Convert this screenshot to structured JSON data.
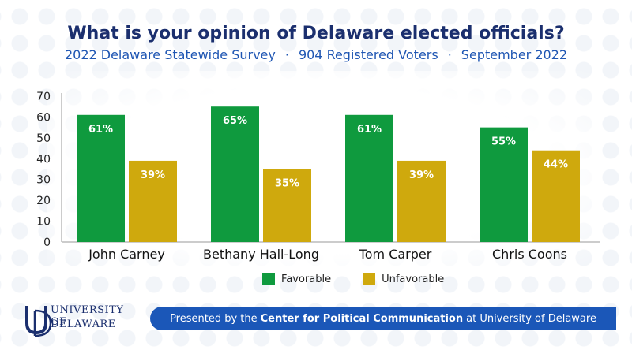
{
  "header": {
    "title": "What is your opinion of Delaware elected officials?",
    "subtitle_parts": [
      "2022 Delaware Statewide Survey",
      "904 Registered Voters",
      "September 2022"
    ],
    "subtitle_separator": "·"
  },
  "colors": {
    "favorable": "#0f9a3e",
    "unfavorable": "#cfa90d",
    "title": "#1b2f6e",
    "subtitle": "#1f56b3",
    "footer_bg": "#1b57b8"
  },
  "chart_data": {
    "type": "bar",
    "categories": [
      "John Carney",
      "Bethany Hall-Long",
      "Tom Carper",
      "Chris Coons"
    ],
    "series": [
      {
        "name": "Favorable",
        "values": [
          61,
          65,
          61,
          55
        ],
        "labels": [
          "61%",
          "65%",
          "61%",
          "55%"
        ]
      },
      {
        "name": "Unfavorable",
        "values": [
          39,
          35,
          39,
          44
        ],
        "labels": [
          "39%",
          "35%",
          "39%",
          "44%"
        ]
      }
    ],
    "ylim": [
      0,
      70
    ],
    "yticks": [
      0,
      10,
      20,
      30,
      40,
      50,
      60,
      70
    ],
    "grid": false,
    "legend_position": "bottom-center"
  },
  "legend": {
    "favorable": "Favorable",
    "unfavorable": "Unfavorable"
  },
  "logo": {
    "line1": "UNIVERSITY OF",
    "line2": "DELAWARE"
  },
  "footer": {
    "prefix": "Presented by the",
    "center": "Center for Political Communication",
    "suffix": "at University of Delaware"
  }
}
